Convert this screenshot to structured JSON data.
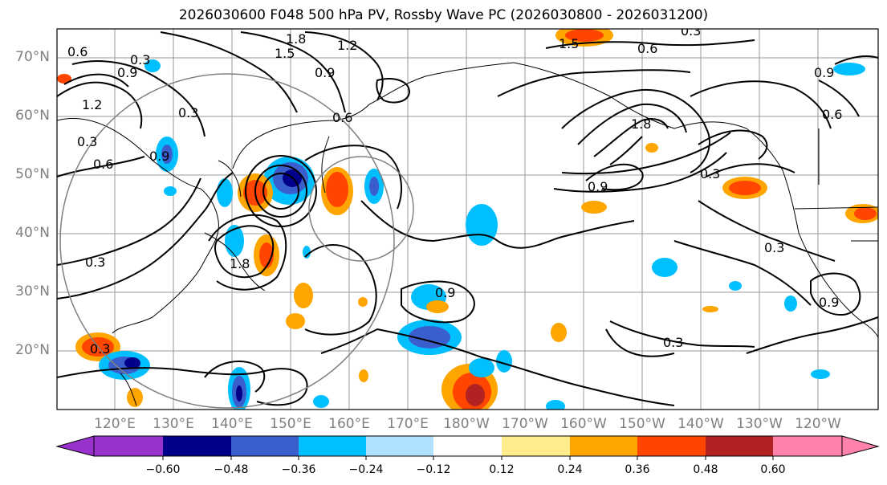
{
  "title": "2026030600 F048 500 hPa PV, Rossby Wave PC (2026030800 - 2026031200)",
  "lat_labels": [
    "70°N",
    "60°N",
    "50°N",
    "40°N",
    "30°N",
    "20°N"
  ],
  "lon_labels": [
    "120°E",
    "130°E",
    "140°E",
    "150°E",
    "160°E",
    "170°E",
    "180°W",
    "170°W",
    "160°W",
    "150°W",
    "140°W",
    "130°W",
    "120°W"
  ],
  "colorbar": {
    "ticks": [
      "−0.60",
      "−0.48",
      "−0.36",
      "−0.24",
      "−0.12",
      "0.12",
      "0.24",
      "0.36",
      "0.48",
      "0.60"
    ],
    "colors": [
      "#9932cc",
      "#00008b",
      "#3a5fcd",
      "#00bfff",
      "#b0e2ff",
      "#ffffff",
      "#ffec8b",
      "#ffa500",
      "#ff4500",
      "#b22222",
      "#ff82ab"
    ]
  },
  "contour_labels": [
    "1.8",
    "1.5",
    "0.9",
    "1.2",
    "0.3",
    "0.6",
    "0.9",
    "1.2",
    "0.3",
    "0.6",
    "0.9",
    "0.3",
    "0.6",
    "1.5",
    "1.8",
    "0.9",
    "0.3",
    "0.3",
    "0.9",
    "0.3",
    "0.6",
    "0.3",
    "0.9",
    "0.3",
    "1.8",
    "0.3",
    "0.6",
    "0.9"
  ]
}
